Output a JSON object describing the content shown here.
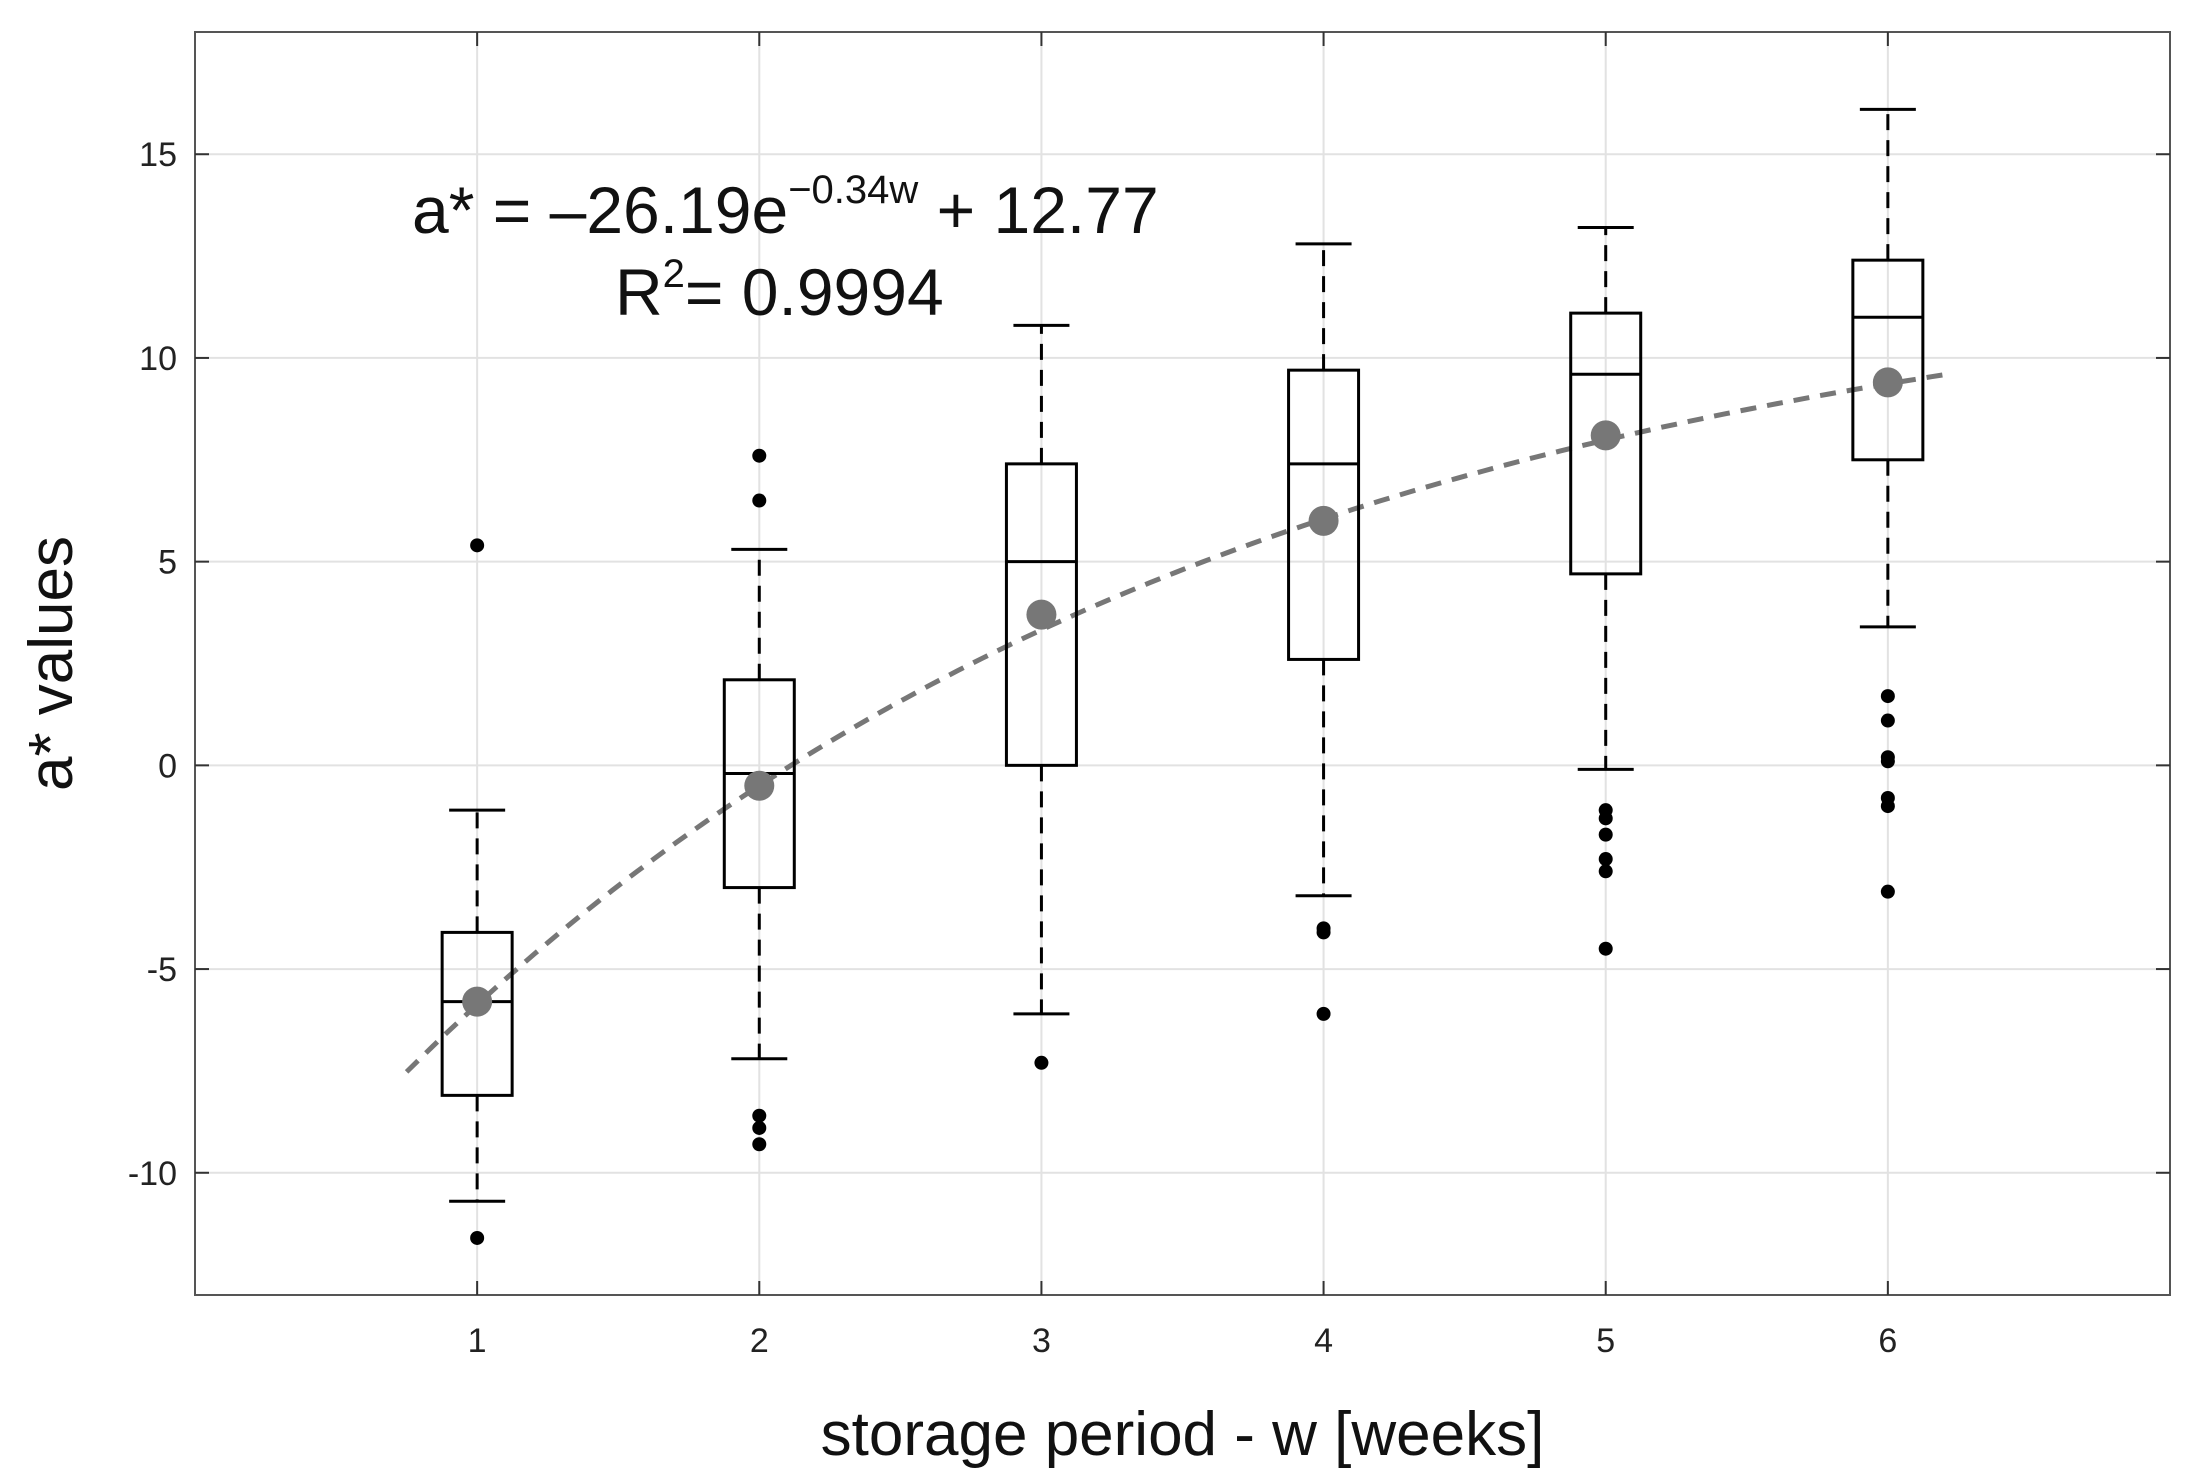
{
  "chart_data": {
    "type": "box",
    "title": "",
    "xlabel": "storage period - w [weeks]",
    "ylabel": "a* values",
    "xlim": [
      0,
      7
    ],
    "ylim": [
      -13,
      18
    ],
    "grid": true,
    "x_ticks": [
      1,
      2,
      3,
      4,
      5,
      6
    ],
    "y_ticks": [
      -10,
      -5,
      0,
      5,
      10,
      15
    ],
    "categories": [
      "1",
      "2",
      "3",
      "4",
      "5",
      "6"
    ],
    "boxes": [
      {
        "week": 1,
        "whisker_low": -10.7,
        "q1": -8.1,
        "median": -5.8,
        "q3": -4.1,
        "whisker_high": -1.1,
        "mean": -5.8,
        "outliers": [
          5.4,
          -11.6
        ]
      },
      {
        "week": 2,
        "whisker_low": -7.2,
        "q1": -3.0,
        "median": -0.2,
        "q3": 2.1,
        "whisker_high": 5.3,
        "mean": -0.5,
        "outliers": [
          7.6,
          6.5,
          -8.6,
          -8.9,
          -9.3
        ]
      },
      {
        "week": 3,
        "whisker_low": -6.1,
        "q1": 0.0,
        "median": 5.0,
        "q3": 7.4,
        "whisker_high": 10.8,
        "mean": 3.7,
        "outliers": [
          -7.3
        ]
      },
      {
        "week": 4,
        "whisker_low": -3.2,
        "q1": 2.6,
        "median": 7.4,
        "q3": 9.7,
        "whisker_high": 12.8,
        "mean": 6.0,
        "outliers": [
          -4.0,
          -4.1,
          -6.1
        ]
      },
      {
        "week": 5,
        "whisker_low": -0.1,
        "q1": 4.7,
        "median": 9.6,
        "q3": 11.1,
        "whisker_high": 13.2,
        "mean": 8.1,
        "outliers": [
          -1.1,
          -1.3,
          -1.7,
          -2.3,
          -2.6,
          -4.5
        ]
      },
      {
        "week": 6,
        "whisker_low": 3.4,
        "q1": 7.5,
        "median": 11.0,
        "q3": 12.4,
        "whisker_high": 16.1,
        "mean": 9.4,
        "outliers": [
          1.7,
          1.1,
          0.2,
          0.1,
          -0.8,
          -1.0,
          -3.1
        ]
      }
    ],
    "fit": {
      "model": "a* = -26.19 * exp(-0.34 w) + 12.77",
      "a": -26.19,
      "b": -0.34,
      "c": 12.77,
      "x_range": [
        0.75,
        6.2
      ],
      "line_color": "#777777",
      "line_style": "dashed"
    },
    "mean_marker_color": "#777777",
    "outlier_color": "#000000",
    "annotation": {
      "equation_prefix": "a* = –26.19e",
      "equation_exponent": "−0.34w",
      "equation_suffix": " + 12.77",
      "r2_prefix": "R",
      "r2_sup": "2",
      "r2_suffix": "= 0.9994"
    }
  }
}
